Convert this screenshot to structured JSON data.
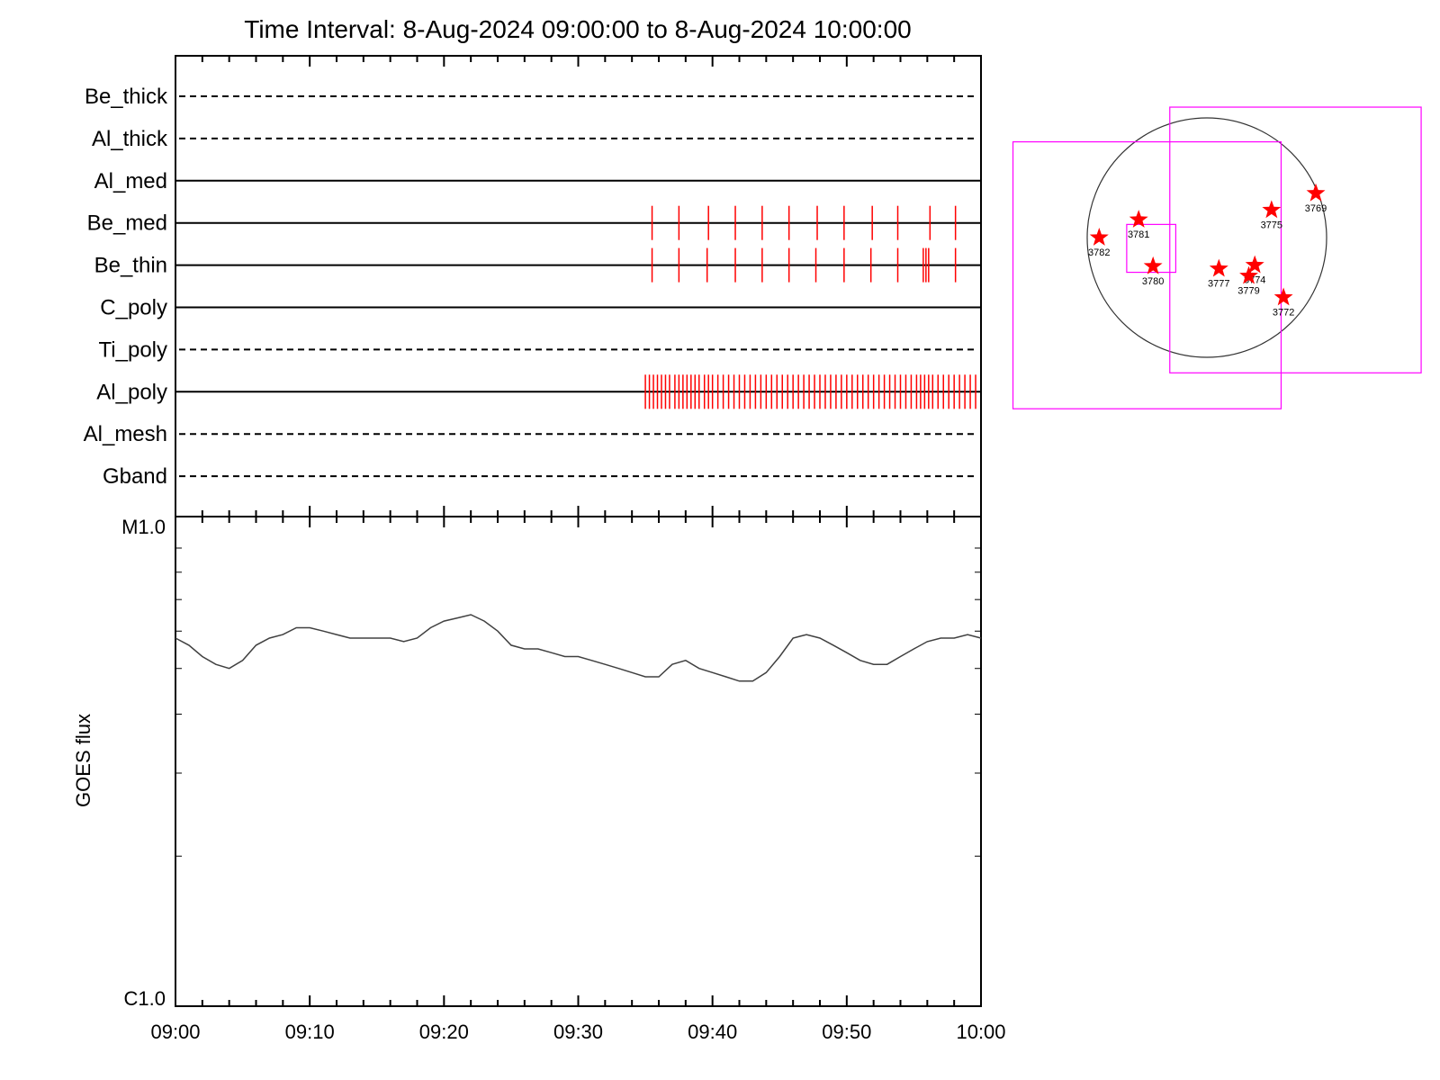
{
  "chart_data": [
    {
      "type": "timeline",
      "title": "Time Interval:  8-Aug-2024 09:00:00 to  8-Aug-2024 10:00:00",
      "x_range": [
        "09:00",
        "10:00"
      ],
      "x_ticks": [
        "09:00",
        "09:10",
        "09:20",
        "09:30",
        "09:40",
        "09:50",
        "10:00"
      ],
      "rows": [
        {
          "name": "Be_thick",
          "style": "dashed",
          "events": []
        },
        {
          "name": "Al_thick",
          "style": "dashed",
          "events": []
        },
        {
          "name": "Al_med",
          "style": "solid",
          "events": []
        },
        {
          "name": "Be_med",
          "style": "solid",
          "events": [
            35.5,
            37.5,
            39.7,
            41.7,
            43.7,
            45.7,
            47.8,
            49.8,
            51.9,
            53.8,
            56.2,
            58.1
          ]
        },
        {
          "name": "Be_thin",
          "style": "solid",
          "events": [
            35.5,
            37.5,
            39.6,
            41.7,
            43.7,
            45.7,
            47.7,
            49.8,
            51.8,
            53.8,
            55.7,
            55.9,
            56.1,
            58.1
          ]
        },
        {
          "name": "C_poly",
          "style": "solid",
          "events": []
        },
        {
          "name": "Ti_poly",
          "style": "dashed",
          "events": []
        },
        {
          "name": "Al_poly",
          "style": "solid",
          "events": [
            35.0,
            35.3,
            35.6,
            35.9,
            36.2,
            36.5,
            36.8,
            37.2,
            37.5,
            37.8,
            38.1,
            38.4,
            38.7,
            39.0,
            39.4,
            39.7,
            40.0,
            40.4,
            40.8,
            41.2,
            41.6,
            42.0,
            42.4,
            42.8,
            43.2,
            43.6,
            44.0,
            44.4,
            44.8,
            45.2,
            45.6,
            46.0,
            46.4,
            46.8,
            47.2,
            47.6,
            48.0,
            48.4,
            48.8,
            49.2,
            49.6,
            50.0,
            50.4,
            50.8,
            51.2,
            51.6,
            52.0,
            52.4,
            52.8,
            53.2,
            53.6,
            54.0,
            54.4,
            54.8,
            55.2,
            55.5,
            55.8,
            56.1,
            56.4,
            56.8,
            57.2,
            57.6,
            58.0,
            58.4,
            58.8,
            59.2,
            59.6
          ]
        },
        {
          "name": "Al_mesh",
          "style": "dashed",
          "events": []
        },
        {
          "name": "Gband",
          "style": "dashed",
          "events": []
        }
      ]
    },
    {
      "type": "line",
      "ylabel": "GOES flux",
      "y_scale": "log",
      "y_ticks": [
        "M1.0",
        "C1.0"
      ],
      "ylim": [
        1e-06,
        1e-05
      ],
      "x_ticks": [
        "09:00",
        "09:10",
        "09:20",
        "09:30",
        "09:40",
        "09:50",
        "10:00"
      ],
      "series": [
        {
          "x": [
            0,
            1,
            2,
            3,
            4,
            5,
            6,
            7,
            8,
            9,
            10,
            11,
            12,
            13,
            14,
            15,
            16,
            17,
            18,
            19,
            20,
            21,
            22,
            23,
            24,
            25,
            26,
            27,
            28,
            29,
            30,
            31,
            32,
            33,
            34,
            35,
            36,
            37,
            38,
            39,
            40,
            41,
            42,
            43,
            44,
            45,
            46,
            47,
            48,
            49,
            50,
            51,
            52,
            53,
            54,
            55,
            56,
            57,
            58,
            59,
            60
          ],
          "y": [
            5.8e-06,
            5.6e-06,
            5.3e-06,
            5.1e-06,
            5e-06,
            5.2e-06,
            5.6e-06,
            5.8e-06,
            5.9e-06,
            6.1e-06,
            6.1e-06,
            6e-06,
            5.9e-06,
            5.8e-06,
            5.8e-06,
            5.8e-06,
            5.8e-06,
            5.7e-06,
            5.8e-06,
            6.1e-06,
            6.3e-06,
            6.4e-06,
            6.5e-06,
            6.3e-06,
            6e-06,
            5.6e-06,
            5.5e-06,
            5.5e-06,
            5.4e-06,
            5.3e-06,
            5.3e-06,
            5.2e-06,
            5.1e-06,
            5e-06,
            4.9e-06,
            4.8e-06,
            4.8e-06,
            5.1e-06,
            5.2e-06,
            5e-06,
            4.9e-06,
            4.8e-06,
            4.7e-06,
            4.7e-06,
            4.9e-06,
            5.3e-06,
            5.8e-06,
            5.9e-06,
            5.8e-06,
            5.6e-06,
            5.4e-06,
            5.2e-06,
            5.1e-06,
            5.1e-06,
            5.3e-06,
            5.5e-06,
            5.7e-06,
            5.8e-06,
            5.8e-06,
            5.9e-06,
            5.8e-06
          ]
        }
      ]
    },
    {
      "type": "scatter",
      "points": [
        {
          "label": "3769",
          "x": 0.91,
          "y": 0.37
        },
        {
          "label": "3775",
          "x": 0.54,
          "y": 0.23
        },
        {
          "label": "3781",
          "x": -0.57,
          "y": 0.15
        },
        {
          "label": "3782",
          "x": -0.9,
          "y": 0.0
        },
        {
          "label": "3780",
          "x": -0.45,
          "y": -0.24
        },
        {
          "label": "3777",
          "x": 0.1,
          "y": -0.26
        },
        {
          "label": "3774",
          "x": 0.4,
          "y": -0.23
        },
        {
          "label": "3779",
          "x": 0.35,
          "y": -0.32
        },
        {
          "label": "3772",
          "x": 0.64,
          "y": -0.5
        }
      ],
      "boxes": [
        {
          "x0": -0.31,
          "x1": 1.79,
          "y0": -1.13,
          "y1": 1.09
        },
        {
          "x0": -1.62,
          "x1": 0.62,
          "y0": -1.43,
          "y1": 0.8
        },
        {
          "x0": -0.67,
          "x1": -0.26,
          "y0": -0.29,
          "y1": 0.11
        }
      ]
    }
  ],
  "colors": {
    "event": "#ff0000",
    "box": "#ff00ff",
    "marker": "#ff0000",
    "axis": "#000000",
    "curve": "#404040"
  }
}
